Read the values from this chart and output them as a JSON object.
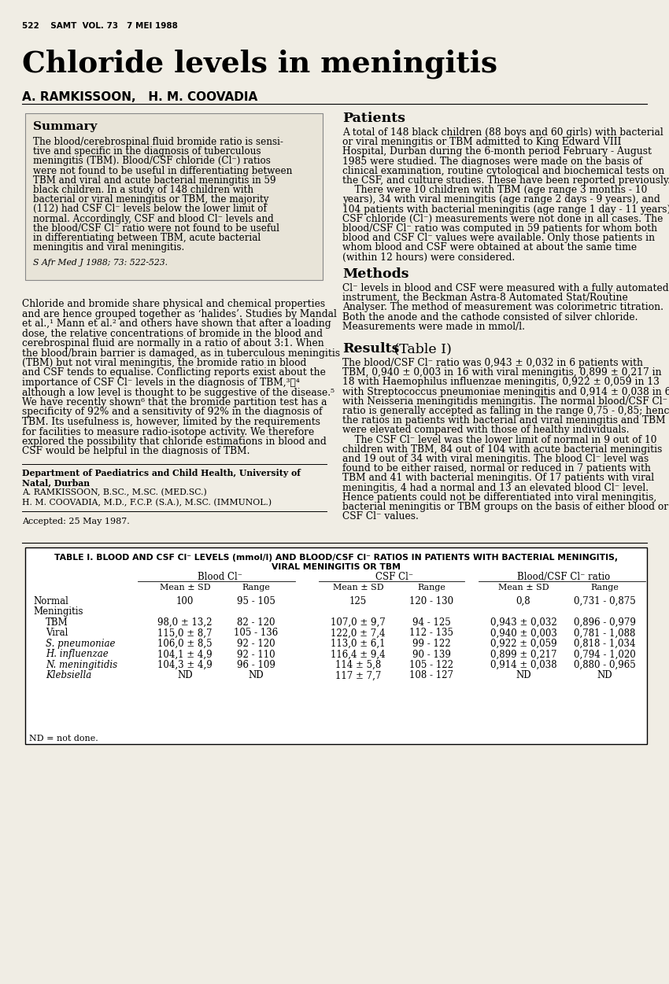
{
  "bg_color": "#f0ede4",
  "page_header": "522    SAMT  VOL. 73   7 MEI 1988",
  "title": "Chloride levels in meningitis",
  "authors": "A. RAMKISSOON,   H. M. COOVADIA",
  "summary_title": "Summary",
  "summary_citation": "S Afr Med J 1988; 73: 522-523.",
  "summary_lines": [
    "The blood/cerebrospinal fluid bromide ratio is sensi-",
    "tive and specific in the diagnosis of tuberculous",
    "meningitis (TBM). Blood/CSF chloride (Cl⁻) ratios",
    "were not found to be useful in differentiating between",
    "TBM and viral and acute bacterial meningitis in 59",
    "black children. In a study of 148 children with",
    "bacterial or viral meningitis or TBM, the majority",
    "(112) had CSF Cl⁻ levels below the lower limit of",
    "normal. Accordingly, CSF and blood Cl⁻ levels and",
    "the blood/CSF Cl⁻ ratio were not found to be useful",
    "in differentiating between TBM, acute bacterial",
    "meningitis and viral meningitis."
  ],
  "intro_lines": [
    "Chloride and bromide share physical and chemical properties",
    "and are hence grouped together as ‘halides’. Studies by Mandal",
    "et al.,¹ Mann et al.² and others have shown that after a loading",
    "dose, the relative concentrations of bromide in the blood and",
    "cerebrospinal fluid are normally in a ratio of about 3:1. When",
    "the blood/brain barrier is damaged, as in tuberculous meningitis",
    "(TBM) but not viral meningitis, the bromide ratio in blood",
    "and CSF tends to equalise. Conflicting reports exist about the",
    "importance of CSF Cl⁻ levels in the diagnosis of TBM,³‧⁴",
    "although a low level is thought to be suggestive of the disease.⁵",
    "We have recently shown⁶ that the bromide partition test has a",
    "specificity of 92% and a sensitivity of 92% in the diagnosis of",
    "TBM. Its usefulness is, however, limited by the requirements",
    "for facilities to measure radio-isotope activity. We therefore",
    "explored the possibility that chloride estimations in blood and",
    "CSF would be helpful in the diagnosis of TBM."
  ],
  "dept_lines": [
    [
      "Department of Paediatrics and Child Health, University of",
      "bold"
    ],
    [
      "Natal, Durban",
      "bold"
    ],
    [
      "A. RAMKISSOON, B.SC., M.SC. (MED.SC.)",
      "normal"
    ],
    [
      "H. M. COOVADIA, M.D., F.C.P. (S.A.), M.SC. (IMMUNOL.)",
      "normal"
    ]
  ],
  "accepted_text": "Accepted: 25 May 1987.",
  "patients_title": "Patients",
  "patients_lines": [
    "A total of 148 black children (88 boys and 60 girls) with bacterial",
    "or viral meningitis or TBM admitted to King Edward VIII",
    "Hospital, Durban during the 6-month period February - August",
    "1985 were studied. The diagnoses were made on the basis of",
    "clinical examination, routine cytological and biochemical tests on",
    "the CSF, and culture studies. These have been reported previously.",
    "    There were 10 children with TBM (age range 3 months - 10",
    "years), 34 with viral meningitis (age range 2 days - 9 years), and",
    "104 patients with bacterial meningitis (age range 1 day - 11 years).",
    "CSF chloride (Cl⁻) measurements were not done in all cases. The",
    "blood/CSF Cl⁻ ratio was computed in 59 patients for whom both",
    "blood and CSF Cl⁻ values were available. Only those patients in",
    "whom blood and CSF were obtained at about the same time",
    "(within 12 hours) were considered."
  ],
  "methods_title": "Methods",
  "methods_lines": [
    "Cl⁻ levels in blood and CSF were measured with a fully automated",
    "instrument, the Beckman Astra-8 Automated Stat/Routine",
    "Analyser. The method of measurement was colorimetric titration.",
    "Both the anode and the cathode consisted of silver chloride.",
    "Measurements were made in mmol/l."
  ],
  "results_title": "Results",
  "results_subtitle": " (Table I)",
  "results_lines": [
    "The blood/CSF Cl⁻ ratio was 0,943 ± 0,032 in 6 patients with",
    "TBM, 0,940 ± 0,003 in 16 with viral meningitis, 0,899 ± 0,217 in",
    "18 with Haemophilus influenzae meningitis, 0,922 ± 0,059 in 13",
    "with Streptococcus pneumoniae meningitis and 0,914 ± 0,038 in 6",
    "with Neisseria meningitidis meningitis. The normal blood/CSF Cl⁻",
    "ratio is generally accepted as falling in the range 0,75 - 0,85; hence",
    "the ratios in patients with bacterial and viral meningitis and TBM",
    "were elevated compared with those of healthy individuals.",
    "    The CSF Cl⁻ level was the lower limit of normal in 9 out of 10",
    "children with TBM, 84 out of 104 with acute bacterial meningitis",
    "and 19 out of 34 with viral meningitis. The blood Cl⁻ level was",
    "found to be either raised, normal or reduced in 7 patients with",
    "TBM and 41 with bacterial meningitis. Of 17 patients with viral",
    "meningitis, 4 had a normal and 13 an elevated blood Cl⁻ level.",
    "Hence patients could not be differentiated into viral meningitis,",
    "bacterial meningitis or TBM groups on the basis of either blood or",
    "CSF Cl⁻ values."
  ],
  "table_title1": "TABLE I. BLOOD AND CSF Cl⁻ LEVELS (mmol/l) AND BLOOD/CSF Cl⁻ RATIOS IN PATIENTS WITH BACTERIAL MENINGITIS,",
  "table_title2": "VIRAL MENINGITIS OR TBM",
  "table_col_headers": [
    "Blood Cl⁻",
    "CSF Cl⁻",
    "Blood/CSF Cl⁻ ratio"
  ],
  "table_sub_headers": [
    "Mean ± SD",
    "Range",
    "Mean ± SD",
    "Range",
    "Mean ± SD",
    "Range"
  ],
  "table_rows": [
    [
      "Normal",
      "100",
      "95 - 105",
      "125",
      "120 - 130",
      "0,8",
      "0,731 - 0,875"
    ],
    [
      "Meningitis",
      "",
      "",
      "",
      "",
      "",
      ""
    ],
    [
      "TBM",
      "98,0 ± 13,2",
      "82 - 120",
      "107,0 ± 9,7",
      "94 - 125",
      "0,943 ± 0,032",
      "0,896 - 0,979"
    ],
    [
      "Viral",
      "115,0 ± 8,7",
      "105 - 136",
      "122,0 ± 7,4",
      "112 - 135",
      "0,940 ± 0,003",
      "0,781 - 1,088"
    ],
    [
      "S. pneumoniae",
      "106,0 ± 8,5",
      "92 - 120",
      "113,0 ± 6,1",
      "99 - 122",
      "0,922 ± 0,059",
      "0,818 - 1,034"
    ],
    [
      "H. influenzae",
      "104,1 ± 4,9",
      "92 - 110",
      "116,4 ± 9,4",
      "90 - 139",
      "0,899 ± 0,217",
      "0,794 - 1,020"
    ],
    [
      "N. meningitidis",
      "104,3 ± 4,9",
      "96 - 109",
      "114 ± 5,8",
      "105 - 122",
      "0,914 ± 0,038",
      "0,880 - 0,965"
    ],
    [
      "Klebsiella",
      "ND",
      "ND",
      "117 ± 7,7",
      "108 - 127",
      "ND",
      "ND"
    ]
  ],
  "table_footnote": "ND = not done.",
  "italic_rows": [
    4,
    5,
    6,
    7
  ]
}
